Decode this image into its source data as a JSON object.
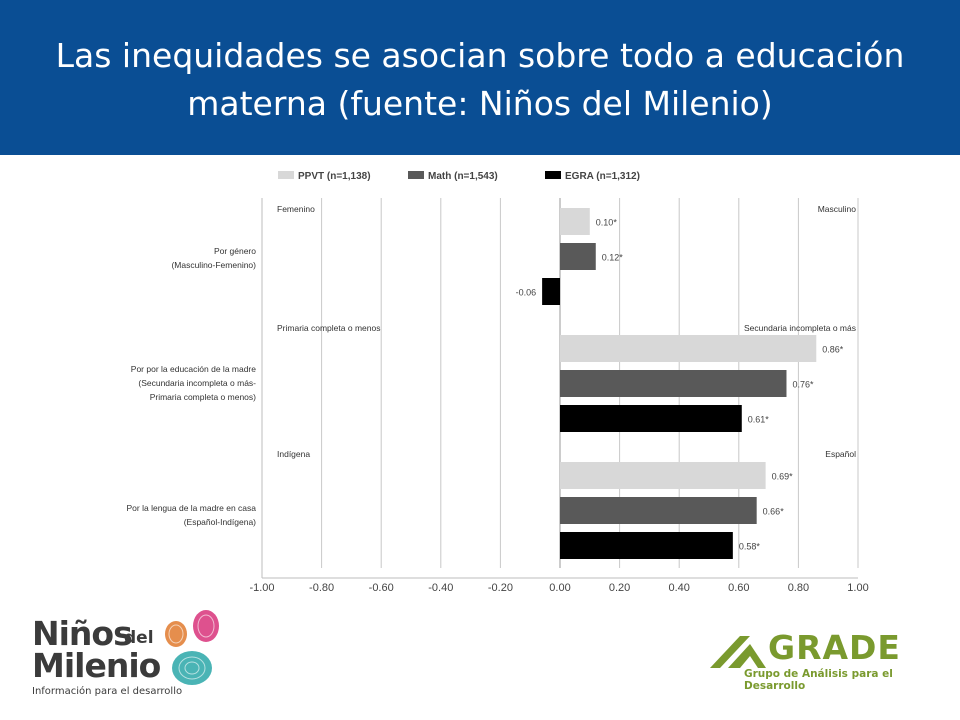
{
  "slide": {
    "title": "Las inequidades se asocian sobre todo a educación materna (fuente: Niños del Milenio)"
  },
  "chart_data": {
    "type": "bar",
    "orientation": "horizontal",
    "xlim": [
      -1.0,
      1.0
    ],
    "x_ticks": [
      "-1.00",
      "-0.80",
      "-0.60",
      "-0.40",
      "-0.20",
      "0.00",
      "0.20",
      "0.40",
      "0.60",
      "0.80",
      "1.00"
    ],
    "grid": true,
    "legend_position": "top",
    "series": [
      {
        "name": "PPVT (n=1,138)",
        "color": "#d8d8d8"
      },
      {
        "name": "Math (n=1,543)",
        "color": "#595959"
      },
      {
        "name": "EGRA (n=1,312)",
        "color": "#000000"
      }
    ],
    "groups": [
      {
        "label_lines": [
          "Por género",
          "(Masculino-Femenino)"
        ],
        "left_label": "Femenino",
        "right_label": "Masculino",
        "values": [
          0.1,
          0.12,
          -0.06
        ],
        "value_labels": [
          "0.10*",
          "0.12*",
          "-0.06"
        ]
      },
      {
        "label_lines": [
          "Por por la educación de la madre",
          "(Secundaria incompleta o más-",
          "Primaria completa o menos)"
        ],
        "left_label": "Primaria completa o menos",
        "right_label": "Secundaria incompleta o más",
        "values": [
          0.86,
          0.76,
          0.61
        ],
        "value_labels": [
          "0.86*",
          "0.76*",
          "0.61*"
        ]
      },
      {
        "label_lines": [
          "Por la lengua de la madre en casa",
          "(Español-Indígena)"
        ],
        "left_label": "Indígena",
        "right_label": "Español",
        "values": [
          0.69,
          0.66,
          0.58
        ],
        "value_labels": [
          "0.69*",
          "0.66*",
          "0.58*"
        ]
      }
    ]
  },
  "logos": {
    "ninos": {
      "line1": "Niños",
      "del": "del",
      "line2": "Milenio",
      "tagline": "Información para el desarrollo",
      "colors": [
        "#e07a2e",
        "#d8337a",
        "#2aa7a8"
      ]
    },
    "grade": {
      "word": "GRADE",
      "subtitle": "Grupo de Análisis para el Desarrollo",
      "color": "#7a9a2e"
    }
  }
}
